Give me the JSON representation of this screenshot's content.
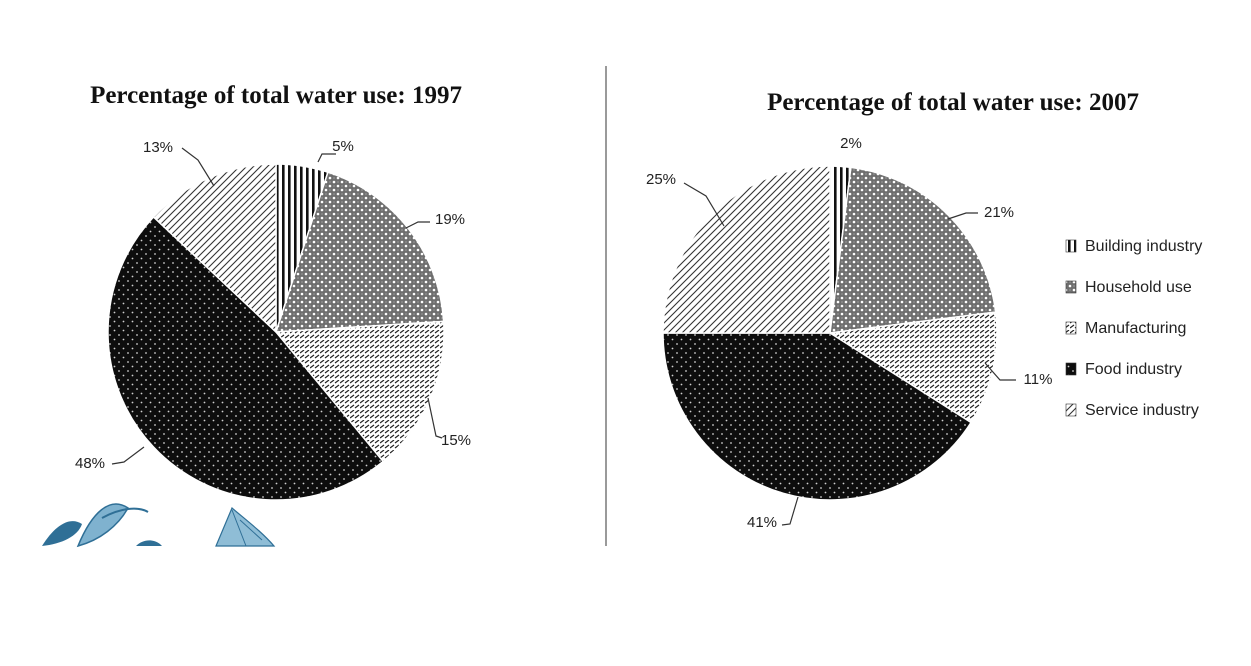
{
  "chart_data": [
    {
      "type": "pie",
      "title": "Percentage of total water use: 1997",
      "categories": [
        "Building industry",
        "Household use",
        "Manufacturing",
        "Food industry",
        "Service industry"
      ],
      "values": [
        5,
        19,
        15,
        48,
        13
      ],
      "value_labels": [
        "5%",
        "19%",
        "15%",
        "48%",
        "13%"
      ]
    },
    {
      "type": "pie",
      "title": "Percentage of total water use: 2007",
      "categories": [
        "Building industry",
        "Household use",
        "Manufacturing",
        "Food industry",
        "Service industry"
      ],
      "values": [
        2,
        21,
        11,
        41,
        25
      ],
      "value_labels": [
        "2%",
        "21%",
        "11%",
        "41%",
        "25%"
      ],
      "legend": {
        "position": "right",
        "entries": [
          "Building industry",
          "Household use",
          "Manufacturing",
          "Food industry",
          "Service industry"
        ]
      }
    }
  ],
  "colors": {
    "background": "#ffffff",
    "ink": "#111111",
    "slice_fill": "#ffffff",
    "food_fill": "#0d0d0d",
    "divider": "#9a9a9a",
    "leaf_dark": "#2f6f96",
    "leaf_light": "#7fb2cf"
  }
}
